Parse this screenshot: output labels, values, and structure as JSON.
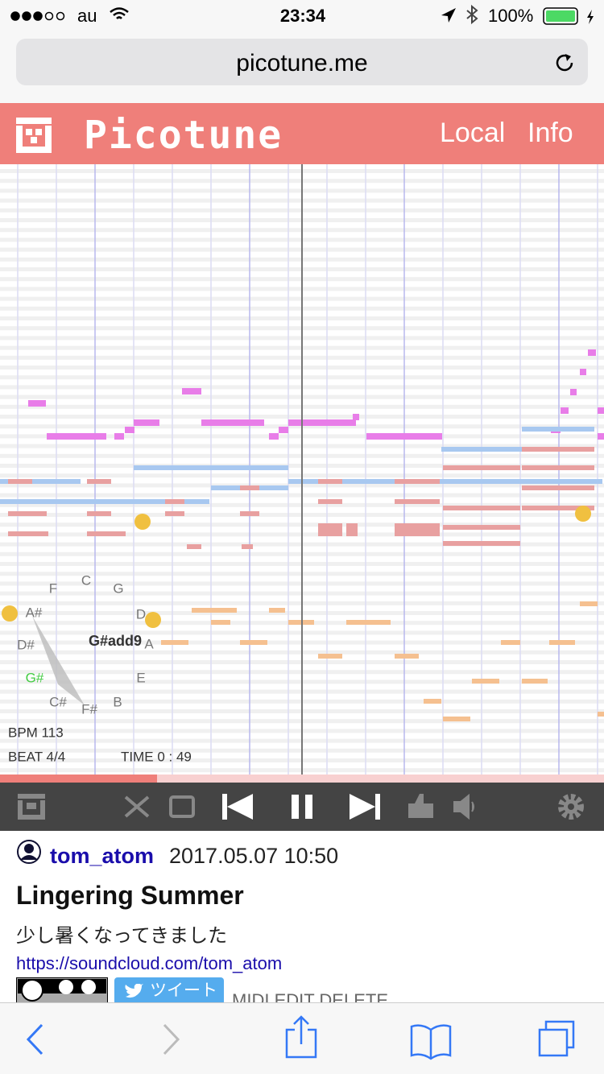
{
  "status_bar": {
    "carrier": "au",
    "time": "23:34",
    "battery": "100%"
  },
  "address_bar": {
    "url": "picotune.me"
  },
  "header": {
    "logo": "Picotune",
    "nav": [
      "Local",
      "Info"
    ]
  },
  "player": {
    "chord_wheel": {
      "notes": [
        "F",
        "C",
        "G",
        "A#",
        "D",
        "D#",
        "A",
        "G#",
        "E",
        "C#",
        "F#",
        "B"
      ],
      "chord": "G#add9"
    },
    "bpm": "BPM 113",
    "beat": "BEAT 4/4",
    "time": "TIME 0 : 49"
  },
  "song": {
    "user": "tom_atom",
    "date": "2017.05.07 10:50",
    "title": "Lingering Summer",
    "description": "少し暑くなってきました",
    "link": "https://soundcloud.com/tom_atom",
    "tweet": "ツイート",
    "actions": [
      "MIDI",
      "EDIT",
      "DELETE"
    ]
  }
}
